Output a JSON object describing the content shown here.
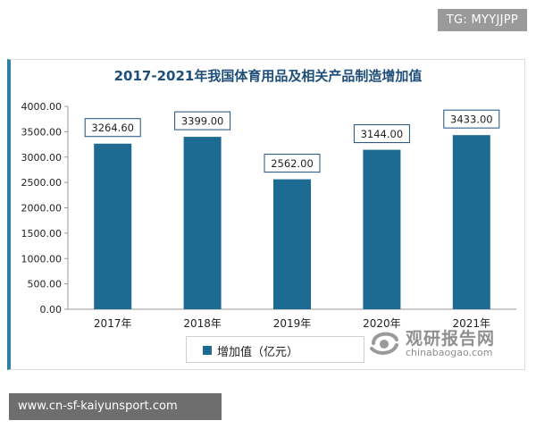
{
  "watermark_tag": "TG: MYYJJPP",
  "footer_text": "www.cn-sf-kaiyunsport.com",
  "brand": {
    "cn": "观研报告网",
    "en": "chinabaogao.com"
  },
  "colors": {
    "bar": "#1d6a92",
    "title": "#1f4e79",
    "card_accent": "#2f7fa6"
  },
  "chart_data": {
    "type": "bar",
    "title": "2017-2021年我国体育用品及相关产品制造增加值",
    "categories": [
      "2017年",
      "2018年",
      "2019年",
      "2020年",
      "2021年"
    ],
    "series": [
      {
        "name": "增加值（亿元）",
        "values": [
          3264.6,
          3399.0,
          2562.0,
          3144.0,
          3433.0
        ]
      }
    ],
    "data_labels": [
      "3264.60",
      "3399.00",
      "2562.00",
      "3144.00",
      "3433.00"
    ],
    "ylim": [
      0,
      4000
    ],
    "yticks": [
      "0.00",
      "500.00",
      "1000.00",
      "1500.00",
      "2000.00",
      "2500.00",
      "3000.00",
      "3500.00",
      "4000.00"
    ],
    "grid": false,
    "legend_position": "bottom"
  }
}
